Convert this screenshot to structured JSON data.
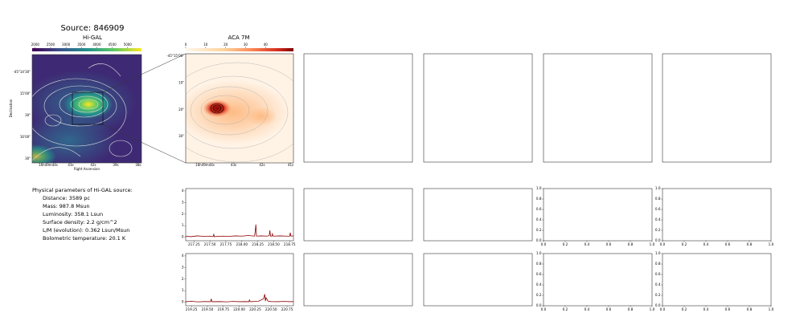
{
  "title": "Source: 846909",
  "higal": {
    "title": "Hi-GAL",
    "colorbar_lim": [
      1900,
      5450
    ],
    "colorbar_ticks": [
      2000,
      2500,
      3000,
      3500,
      4000,
      4500,
      5000
    ],
    "xticks": [
      "16h49m44s",
      "43s",
      "42s",
      "39s",
      "38s"
    ],
    "yticks": [
      "-45°14'30\"",
      "15'00\"",
      "30\"",
      "16'00\"",
      "30\""
    ],
    "xlabel": "Right Ascension",
    "ylabel": "Declination"
  },
  "aca": {
    "title": "ACA 7M",
    "colorbar_lim": [
      0,
      54
    ],
    "colorbar_ticks": [
      0,
      10,
      20,
      30,
      40
    ],
    "xticks": [
      "16h49m44s",
      "43s",
      "42s",
      "41s"
    ],
    "yticks": [
      "-45°15'00\"",
      "10\"",
      "20\"",
      "30\""
    ]
  },
  "parameters": {
    "heading": "Physical parameters of Hi-GAL source:",
    "lines": [
      "Distance: 3589 pc",
      "Mass: 987.8 Msun",
      "Luminosity: 358.1 Lsun",
      "Surface density: 2.2 g/cm^2",
      "L/M (evolution): 0.362 Lsun/Msun",
      "Bolometric temperature: 20.1 K"
    ]
  },
  "spectra": [
    {
      "type": "line",
      "color": "#8b0000",
      "xlim": [
        217.12,
        218.81
      ],
      "ylim": [
        -0.3,
        4.2
      ],
      "xticks": [
        217.25,
        {
          "value": 217.5,
          "label": "217.50"
        },
        217.75,
        {
          "value": 218,
          "label": "218.00"
        },
        218.25,
        {
          "value": 218.5,
          "label": "218.50"
        },
        218.75
      ],
      "yticks": [
        0,
        1,
        2,
        3,
        4
      ],
      "x": [
        217.12,
        217.2,
        217.3,
        217.4,
        217.5,
        217.55,
        217.56,
        217.57,
        217.7,
        217.8,
        217.9,
        218.0,
        218.1,
        218.2,
        218.21,
        218.22,
        218.23,
        218.3,
        218.4,
        218.43,
        218.44,
        218.45,
        218.47,
        218.48,
        218.49,
        218.6,
        218.7,
        218.75,
        218.76,
        218.77,
        218.81
      ],
      "values": [
        0.1,
        0.05,
        0.12,
        0.08,
        0.1,
        0.05,
        0.25,
        0.05,
        0.1,
        0.08,
        0.12,
        0.1,
        0.15,
        0.1,
        0.5,
        1.1,
        0.1,
        0.12,
        0.1,
        0.15,
        0.6,
        0.1,
        0.1,
        0.3,
        0.1,
        0.12,
        0.1,
        0.1,
        0.4,
        0.1,
        0.12
      ]
    },
    {
      "type": "line",
      "color": "#8b0000",
      "xlim": [
        219.16,
        220.85
      ],
      "ylim": [
        -0.3,
        4.2
      ],
      "xticks": [
        219.25,
        {
          "value": 219.5,
          "label": "219.50"
        },
        219.75,
        {
          "value": 220,
          "label": "220.00"
        },
        220.25,
        {
          "value": 220.5,
          "label": "220.50"
        },
        220.75
      ],
      "yticks": [
        0,
        1,
        2,
        3,
        4
      ],
      "x": [
        219.16,
        219.25,
        219.35,
        219.45,
        219.55,
        219.56,
        219.57,
        219.7,
        219.8,
        219.9,
        220.0,
        220.1,
        220.15,
        220.16,
        220.17,
        220.3,
        220.38,
        220.4,
        220.41,
        220.42,
        220.45,
        220.5,
        220.6,
        220.7,
        220.8,
        220.85
      ],
      "values": [
        0.05,
        0.08,
        0.04,
        0.06,
        0.05,
        0.3,
        0.05,
        0.06,
        0.04,
        0.07,
        0.05,
        0.06,
        0.05,
        0.2,
        0.05,
        0.08,
        0.3,
        0.7,
        0.1,
        0.4,
        0.1,
        0.06,
        0.05,
        0.07,
        0.05,
        0.06
      ]
    }
  ],
  "unit_axes": {
    "xlim": [
      0,
      1
    ],
    "ylim": [
      0,
      1
    ],
    "xticks": [
      {
        "value": 0,
        "label": "0.0"
      },
      0.2,
      0.4,
      0.6,
      0.8,
      {
        "value": 1,
        "label": "1.0"
      }
    ],
    "yticks": [
      {
        "value": 0,
        "label": "0.0"
      },
      0.2,
      0.4,
      0.6,
      0.8,
      {
        "value": 1,
        "label": "1.0"
      }
    ]
  }
}
